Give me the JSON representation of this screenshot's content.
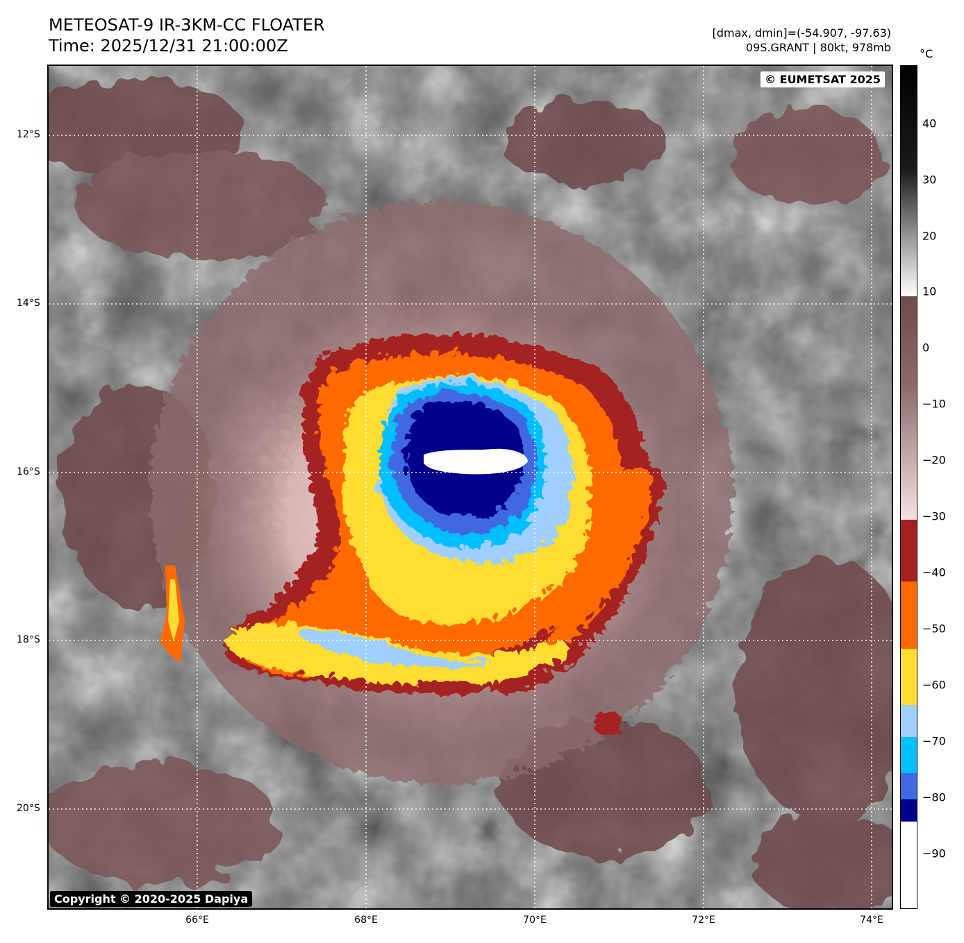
{
  "header": {
    "title_line1": "METEOSAT-9 IR-3KM-CC FLOATER",
    "title_line2": "Time: 2025/12/31 21:00:00Z",
    "info_line1": "[dmax, dmin]=(-54.907, -97.63)",
    "info_line2": "09S.GRANT | 80kt, 978mb"
  },
  "map": {
    "credit_top": "© EUMETSAT 2025",
    "credit_bottom": "Copyright © 2020-2025 Dapiya",
    "lat_labels": [
      "12°S",
      "14°S",
      "16°S",
      "18°S",
      "20°S"
    ],
    "lon_labels": [
      "66°E",
      "68°E",
      "70°E",
      "72°E",
      "74°E"
    ]
  },
  "colorbar": {
    "unit": "°C",
    "ticks": [
      "40",
      "30",
      "20",
      "10",
      "0",
      "−10",
      "−20",
      "−30",
      "−40",
      "−50",
      "−60",
      "−70",
      "−80",
      "−90"
    ],
    "colors": {
      "cold_white": "#ffffff",
      "navy": "#00008b",
      "royal_blue": "#4169e1",
      "sky": "#00bfff",
      "light_blue": "#9fcfff",
      "yellow": "#ffdd33",
      "orange": "#ff6a00",
      "dark_red": "#a52020",
      "pink": "#f2d6d6",
      "brown": "#6e4a4a",
      "gray_white": "#ffffff",
      "gray_black": "#000000"
    }
  }
}
